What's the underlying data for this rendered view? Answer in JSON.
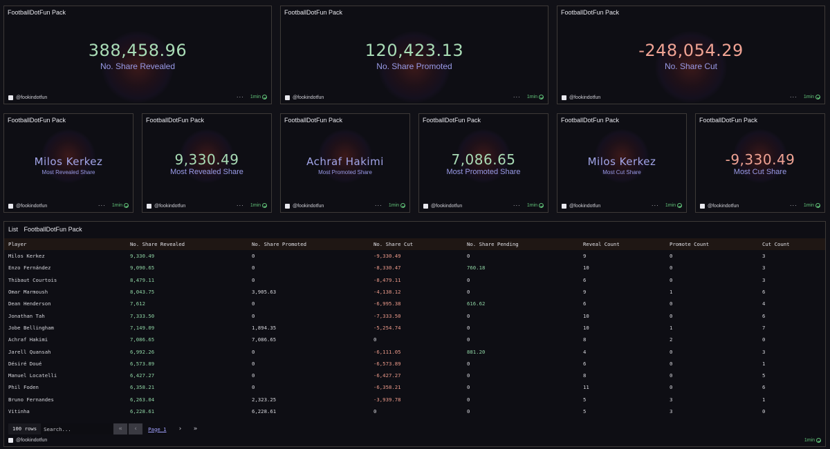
{
  "panel_title": "FootballDotFun Pack",
  "handle": "@fookindotfun",
  "time": "1min",
  "more": "···",
  "top_cards": [
    {
      "value": "388,458.96",
      "label": "No. Share Revealed",
      "tone": "pos"
    },
    {
      "value": "120,423.13",
      "label": "No. Share Promoted",
      "tone": "pos"
    },
    {
      "value": "-248,054.29",
      "label": "No. Share Cut",
      "tone": "neg"
    }
  ],
  "mid_cards": [
    {
      "value": "Milos Kerkez",
      "label": "Most Revealed Share",
      "kind": "name"
    },
    {
      "value": "9,330.49",
      "label": "Most Revealed Share",
      "kind": "pos"
    },
    {
      "value": "Achraf Hakimi",
      "label": "Most Promoted Share",
      "kind": "name"
    },
    {
      "value": "7,086.65",
      "label": "Most Promoted Share",
      "kind": "pos"
    },
    {
      "value": "Milos Kerkez",
      "label": "Most Cut Share",
      "kind": "name"
    },
    {
      "value": "-9,330.49",
      "label": "Most Cut Share",
      "kind": "neg"
    }
  ],
  "list": {
    "label": "List",
    "title": "FootballDotFun Pack",
    "columns": [
      "Player",
      "No. Share Revealed",
      "No. Share Promoted",
      "No. Share Cut",
      "No. Share Pending",
      "Reveal Count",
      "Promote Count",
      "Cut Count"
    ],
    "rows": [
      [
        "Milos Kerkez",
        "9,330.49",
        "0",
        "-9,330.49",
        "0",
        "9",
        "0",
        "3"
      ],
      [
        "Enzo Fernández",
        "9,090.65",
        "0",
        "-8,330.47",
        "760.18",
        "10",
        "0",
        "3"
      ],
      [
        "Thibaut Courtois",
        "8,479.11",
        "0",
        "-8,479.11",
        "0",
        "6",
        "0",
        "3"
      ],
      [
        "Omar Marmoush",
        "8,043.75",
        "3,905.63",
        "-4,138.12",
        "0",
        "9",
        "1",
        "6"
      ],
      [
        "Dean Henderson",
        "7,612",
        "0",
        "-6,995.38",
        "616.62",
        "6",
        "0",
        "4"
      ],
      [
        "Jonathan Tah",
        "7,333.50",
        "0",
        "-7,333.50",
        "0",
        "10",
        "0",
        "6"
      ],
      [
        "Jobe Bellingham",
        "7,149.09",
        "1,894.35",
        "-5,254.74",
        "0",
        "10",
        "1",
        "7"
      ],
      [
        "Achraf Hakimi",
        "7,086.65",
        "7,086.65",
        "0",
        "0",
        "8",
        "2",
        "0"
      ],
      [
        "Jarell Quansah",
        "6,992.26",
        "0",
        "-6,111.05",
        "881.20",
        "4",
        "0",
        "3"
      ],
      [
        "Désiré Doué",
        "6,573.89",
        "0",
        "-6,573.89",
        "0",
        "6",
        "0",
        "1"
      ],
      [
        "Manuel Locatelli",
        "6,427.27",
        "0",
        "-6,427.27",
        "0",
        "8",
        "0",
        "5"
      ],
      [
        "Phil Foden",
        "6,358.21",
        "0",
        "-6,358.21",
        "0",
        "11",
        "0",
        "6"
      ],
      [
        "Bruno Fernandes",
        "6,263.04",
        "2,323.25",
        "-3,939.78",
        "0",
        "5",
        "3",
        "1"
      ],
      [
        "Vitinha",
        "6,228.61",
        "6,228.61",
        "0",
        "0",
        "5",
        "3",
        "0"
      ]
    ],
    "pager": {
      "rows": "100 rows",
      "search_placeholder": "Search...",
      "page": "Page 1",
      "first": "«",
      "prev": "‹",
      "next": "›",
      "last": "»"
    }
  },
  "colors": {
    "positive": "#a9dcb6",
    "negative": "#f0a394",
    "name": "#a3a6ea",
    "ok": "#62c47a"
  }
}
